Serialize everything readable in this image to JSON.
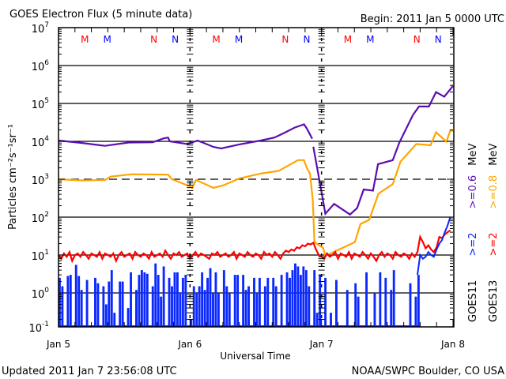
{
  "chart_data": {
    "type": "line",
    "title": "GOES Electron Flux (5 minute data)",
    "begin_label": "Begin: 2011 Jan 5 0000 UTC",
    "updated_label": "Updated 2011 Jan  7 23:56:08 UTC",
    "credit_label": "NOAA/SWPC Boulder, CO USA",
    "xlabel": "Universal Time",
    "ylabel": "Particles cm⁻²s⁻¹sr⁻¹",
    "x_unit": "hours since 2011 Jan 5 0000 UTC",
    "xlim": [
      0,
      72
    ],
    "x_ticks": [
      {
        "h": 0,
        "label": "Jan 5"
      },
      {
        "h": 24,
        "label": "Jan 6"
      },
      {
        "h": 48,
        "label": "Jan 7"
      },
      {
        "h": 72,
        "label": "Jan 8"
      }
    ],
    "y_scale": "log",
    "ylim": [
      0.1,
      10000000
    ],
    "y_ticks": [
      {
        "exp": "7"
      },
      {
        "exp": "6"
      },
      {
        "exp": "5"
      },
      {
        "exp": "4"
      },
      {
        "exp": "3"
      },
      {
        "exp": "2"
      },
      {
        "exp": "1"
      },
      {
        "exp": "0"
      },
      {
        "exp": "-1"
      }
    ],
    "threshold_dashed": 1000,
    "grid": true,
    "markers": [
      {
        "h": 4.8,
        "label": "M",
        "color": "#ff0000"
      },
      {
        "h": 8.9,
        "label": "M",
        "color": "#0000ff"
      },
      {
        "h": 17.4,
        "label": "N",
        "color": "#ff0000"
      },
      {
        "h": 21.3,
        "label": "N",
        "color": "#0000ff"
      },
      {
        "h": 28.8,
        "label": "M",
        "color": "#ff0000"
      },
      {
        "h": 32.9,
        "label": "M",
        "color": "#0000ff"
      },
      {
        "h": 41.4,
        "label": "N",
        "color": "#ff0000"
      },
      {
        "h": 45.3,
        "label": "N",
        "color": "#0000ff"
      },
      {
        "h": 52.8,
        "label": "M",
        "color": "#ff0000"
      },
      {
        "h": 56.9,
        "label": "M",
        "color": "#0000ff"
      },
      {
        "h": 65.4,
        "label": "N",
        "color": "#ff0000"
      },
      {
        "h": 69.3,
        "label": "N",
        "color": "#0000ff"
      }
    ],
    "legend": {
      "placement": "right",
      "goes11": {
        "sat": "GOES11",
        "ch1": ">=2",
        "ch2": ">=0.6",
        "unit": "MeV"
      },
      "goes13": {
        "sat": "GOES13",
        "ch1": ">=2",
        "ch2": ">=0.8",
        "unit": "MeV"
      }
    },
    "series": [
      {
        "name": "GOES11 >=0.6 MeV",
        "color": "#5a0fb0",
        "points": [
          [
            0,
            10500
          ],
          [
            4.2,
            9100
          ],
          [
            8.5,
            7600
          ],
          [
            12.8,
            9300
          ],
          [
            17.2,
            9500
          ],
          [
            19.2,
            12000
          ],
          [
            20.0,
            12600
          ],
          [
            20.3,
            10000
          ],
          [
            23.5,
            8500
          ],
          [
            25.4,
            10500
          ],
          [
            28.3,
            7100
          ],
          [
            29.7,
            6500
          ],
          [
            33.0,
            8300
          ],
          [
            36.9,
            10500
          ],
          [
            39.4,
            12600
          ],
          [
            41.2,
            16600
          ],
          [
            43.1,
            23000
          ],
          [
            44.8,
            28000
          ],
          [
            45.3,
            22000
          ],
          [
            46.3,
            11700
          ],
          null,
          [
            46.5,
            7200
          ],
          [
            48.0,
            457
          ],
          [
            48.7,
            123
          ],
          [
            50.3,
            224
          ],
          [
            53.2,
            117
          ],
          [
            54.5,
            174
          ],
          [
            55.7,
            537
          ],
          [
            57.4,
            501
          ],
          [
            58.3,
            2500
          ],
          [
            61.0,
            3200
          ],
          [
            62.2,
            9300
          ],
          [
            64.7,
            50000
          ],
          [
            65.8,
            83000
          ],
          [
            67.6,
            83000
          ],
          [
            68.9,
            200000
          ],
          [
            70.4,
            150000
          ],
          [
            72,
            290000
          ]
        ]
      },
      {
        "name": "GOES13 >=0.8 MeV",
        "color": "#ffa500",
        "points": [
          [
            0,
            1000
          ],
          [
            4.2,
            930
          ],
          [
            8.5,
            955
          ],
          [
            9.5,
            1170
          ],
          [
            13.4,
            1350
          ],
          [
            20.0,
            1320
          ],
          [
            20.7,
            1000
          ],
          [
            23.5,
            690
          ],
          [
            24.4,
            590
          ],
          [
            25.1,
            955
          ],
          [
            28.3,
            590
          ],
          [
            30.1,
            690
          ],
          [
            33.0,
            1050
          ],
          [
            36.9,
            1410
          ],
          [
            40.2,
            1660
          ],
          [
            41.7,
            2200
          ],
          [
            43.7,
            3200
          ],
          [
            44.8,
            3200
          ],
          [
            45.3,
            2000
          ],
          [
            45.9,
            1410
          ],
          [
            46.4,
            282
          ],
          [
            46.7,
            22
          ],
          [
            48.3,
            15.5
          ],
          [
            48.7,
            9.5
          ],
          [
            51.2,
            14
          ],
          [
            54.1,
            22
          ],
          [
            55.1,
            66
          ],
          [
            56.7,
            85
          ],
          [
            58.4,
            417
          ],
          [
            61.0,
            741
          ],
          [
            62.4,
            2900
          ],
          [
            65.3,
            8500
          ],
          [
            67.9,
            7900
          ],
          [
            68.9,
            17400
          ],
          [
            70.8,
            9800
          ],
          [
            71.5,
            19000
          ],
          [
            72,
            19000
          ]
        ]
      },
      {
        "name": "GOES13 >=2 MeV",
        "color": "#ff0000",
        "interval_h": 0.5,
        "values": [
          10,
          8,
          11,
          9,
          12,
          7,
          10,
          11,
          9,
          12,
          10,
          8,
          11,
          10,
          9,
          12,
          8,
          11,
          10,
          9,
          11,
          7,
          10,
          12,
          9,
          10,
          11,
          8,
          12,
          10,
          9,
          11,
          10,
          8,
          12,
          9,
          10,
          11,
          9,
          13,
          10,
          8,
          11,
          10,
          12,
          9,
          10,
          11,
          8,
          10,
          12,
          9,
          11,
          10,
          9,
          8,
          11,
          10,
          12,
          9,
          10,
          11,
          9,
          10,
          12,
          8,
          11,
          10,
          9,
          12,
          10,
          9,
          11,
          10,
          8,
          12,
          10,
          11,
          9,
          12,
          10,
          8,
          11,
          13,
          12,
          14,
          13,
          16,
          15,
          18,
          17,
          20,
          19,
          21,
          14,
          10,
          9,
          8,
          11,
          9,
          10,
          12,
          8,
          11,
          10,
          9,
          12,
          8,
          11,
          10,
          9,
          12,
          10,
          8,
          11,
          9,
          7,
          10,
          12,
          9,
          11,
          10,
          8,
          12,
          10,
          9,
          11,
          10,
          8,
          11,
          9,
          12,
          30,
          22,
          15,
          18,
          14,
          12,
          16,
          30,
          28,
          35,
          40,
          45
        ]
      },
      {
        "name": "GOES11 >=2 MeV",
        "color": "#0a28ff",
        "interval_h": 0.5,
        "values": [
          2.5,
          1.5,
          0.1,
          2.8,
          3,
          0.1,
          5.5,
          2.8,
          1.2,
          0.1,
          2.2,
          0.1,
          0.1,
          2.5,
          1.8,
          0.1,
          1.5,
          0.5,
          2.0,
          4,
          0.3,
          0.1,
          2.0,
          2.0,
          0.1,
          0.4,
          3.5,
          0.1,
          1.2,
          3,
          4,
          3.5,
          3.2,
          0.1,
          1.5,
          6,
          3,
          0.8,
          5,
          0.1,
          2.5,
          1.5,
          3.5,
          3.5,
          1.0,
          2.5,
          3,
          0.1,
          0.2,
          1.5,
          1.0,
          1.5,
          3.5,
          1.2,
          2.5,
          4.5,
          1.0,
          3.5,
          1.0,
          0.1,
          4,
          1.5,
          1.0,
          0.1,
          3,
          3,
          0.1,
          3,
          1.2,
          1.5,
          0.1,
          2.5,
          1.0,
          2.5,
          0.1,
          1.5,
          2.5,
          0.1,
          2.5,
          1.5,
          0.1,
          3,
          0.1,
          3.5,
          2.5,
          4,
          6,
          5,
          3,
          5,
          4,
          1.5,
          0.1,
          4,
          0.3,
          3,
          0.1,
          2.5,
          0.1,
          0.3,
          0.1,
          2.2,
          0.1,
          0.1,
          0.1,
          1.2,
          0.1,
          0.1,
          1.8,
          0.8,
          0.1,
          0.1,
          3.5,
          0.1,
          0.1,
          1.0,
          0.1,
          3.5,
          0.1,
          2.5,
          0.1,
          1.2,
          4,
          0.1,
          0.1,
          0.1,
          0.1,
          0.1,
          1.8,
          0.1,
          0.8,
          3,
          10,
          8,
          9,
          12,
          10,
          9,
          14,
          20,
          25,
          40,
          60,
          100
        ]
      }
    ]
  }
}
